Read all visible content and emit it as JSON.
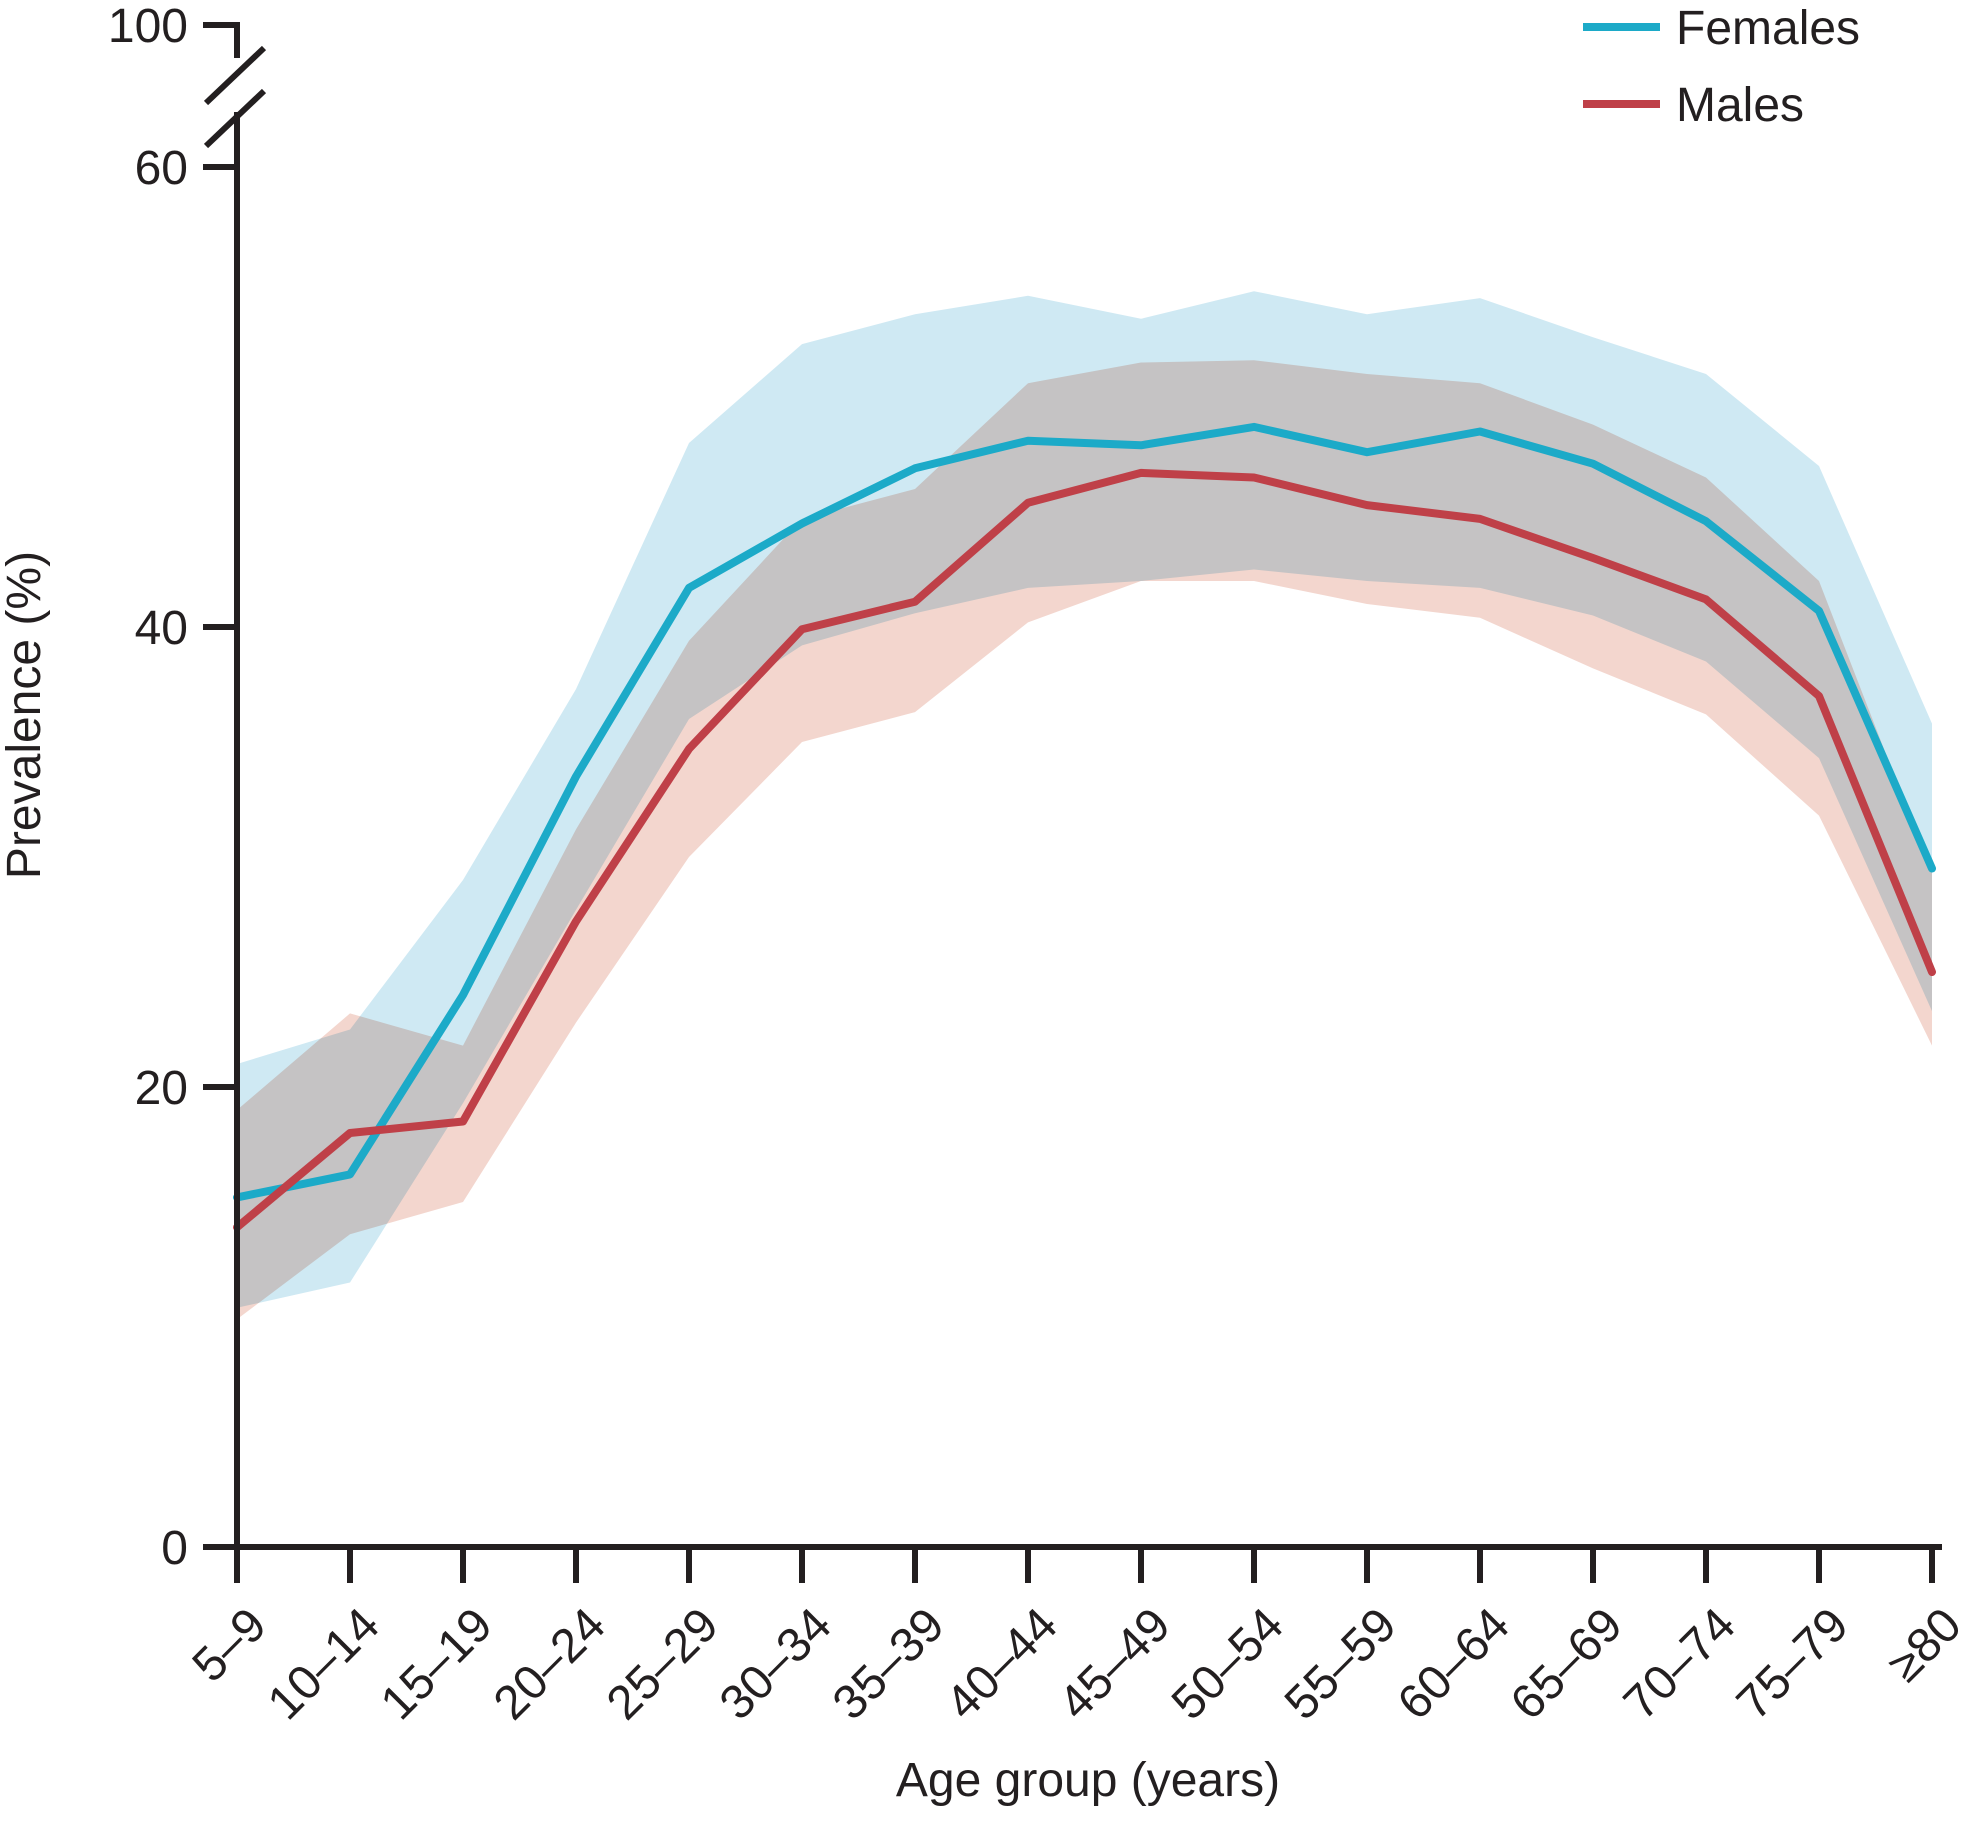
{
  "chart_data": {
    "type": "line",
    "title": "",
    "xlabel": "Age group (years)",
    "ylabel": "Prevalence (%)",
    "categories": [
      "5–9",
      "10–14",
      "15–19",
      "20–24",
      "25–29",
      "30–34",
      "35–39",
      "40–44",
      "45–49",
      "50–54",
      "55–59",
      "60–64",
      "65–69",
      "70–74",
      "75–79",
      "≥80"
    ],
    "y_ticks": [
      0,
      20,
      40,
      60,
      100
    ],
    "ylim": [
      0,
      100
    ],
    "axis_break": {
      "between": [
        60,
        100
      ]
    },
    "grid": false,
    "legend_position": "top-right",
    "bands_are": "uncertainty intervals (shaded)",
    "series": [
      {
        "name": "Females",
        "color": "#1caac8",
        "band_color": "#cfe9f3",
        "values": [
          15.2,
          16.2,
          24.0,
          33.5,
          41.7,
          44.5,
          46.9,
          48.1,
          47.9,
          48.7,
          47.6,
          48.5,
          47.1,
          44.6,
          40.7,
          29.5
        ],
        "upper": [
          21.0,
          22.5,
          29.0,
          37.3,
          48.0,
          52.3,
          53.6,
          54.4,
          53.4,
          54.6,
          53.6,
          54.3,
          52.6,
          51.0,
          47.0,
          35.8
        ],
        "lower": [
          10.4,
          11.5,
          19.3,
          27.7,
          36.0,
          39.2,
          40.6,
          41.7,
          42.0,
          42.5,
          42.0,
          41.7,
          40.5,
          38.5,
          34.3,
          23.3
        ]
      },
      {
        "name": "Males",
        "color": "#bf4048",
        "band_color": "#f3d6ce",
        "values": [
          13.9,
          18.0,
          18.5,
          27.2,
          34.7,
          39.9,
          41.1,
          45.4,
          46.7,
          46.5,
          45.3,
          44.7,
          43.0,
          41.2,
          37.0,
          25.0
        ],
        "upper": [
          19.0,
          23.2,
          21.8,
          31.2,
          39.4,
          44.7,
          46.0,
          50.6,
          51.5,
          51.6,
          51.0,
          50.6,
          48.8,
          46.5,
          42.0,
          29.3
        ],
        "lower": [
          9.9,
          13.6,
          15.0,
          22.8,
          30.0,
          35.0,
          36.3,
          40.2,
          42.0,
          42.0,
          41.0,
          40.4,
          38.2,
          36.2,
          31.8,
          21.8
        ]
      }
    ]
  },
  "colors": {
    "text": "#231f20",
    "axis": "#231f20",
    "background": "#ffffff"
  }
}
